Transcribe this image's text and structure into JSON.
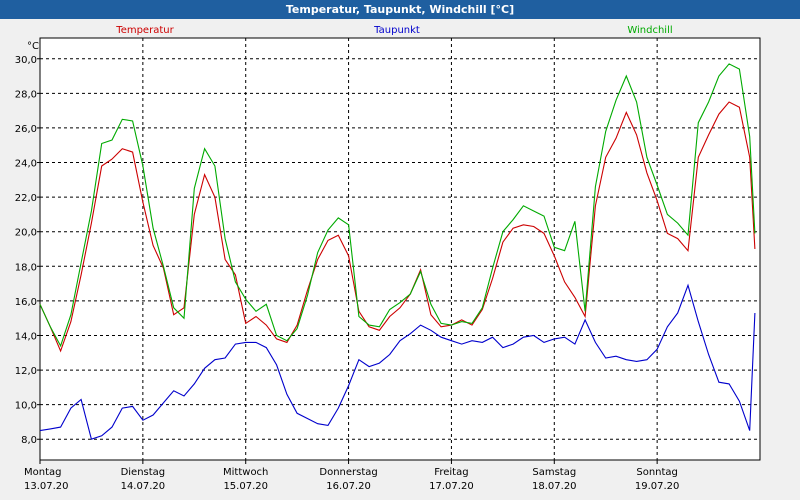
{
  "window": {
    "title": "Temperatur, Taupunkt, Windchill [°C]"
  },
  "chart_data": {
    "type": "line",
    "title": "Temperatur, Taupunkt, Windchill [°C]",
    "ylabel": "°C",
    "ylim": [
      6.8,
      31.2
    ],
    "xlim": [
      0,
      7
    ],
    "grid": true,
    "legend_position": "top",
    "yticks": [
      "8,0",
      "10,0",
      "12,0",
      "14,0",
      "16,0",
      "18,0",
      "20,0",
      "22,0",
      "24,0",
      "26,0",
      "28,0",
      "30,0"
    ],
    "xticks": [
      {
        "day": "Montag",
        "date": "13.07.20"
      },
      {
        "day": "Dienstag",
        "date": "14.07.20"
      },
      {
        "day": "Mittwoch",
        "date": "15.07.20"
      },
      {
        "day": "Donnerstag",
        "date": "16.07.20"
      },
      {
        "day": "Freitag",
        "date": "17.07.20"
      },
      {
        "day": "Samstag",
        "date": "18.07.20"
      },
      {
        "day": "Sonntag",
        "date": "19.07.20"
      }
    ],
    "x": [
      0,
      0.1,
      0.2,
      0.3,
      0.4,
      0.5,
      0.6,
      0.7,
      0.8,
      0.9,
      1,
      1.1,
      1.2,
      1.3,
      1.4,
      1.5,
      1.6,
      1.7,
      1.8,
      1.9,
      2,
      2.1,
      2.2,
      2.3,
      2.4,
      2.5,
      2.6,
      2.7,
      2.8,
      2.9,
      3,
      3.1,
      3.2,
      3.3,
      3.4,
      3.5,
      3.6,
      3.7,
      3.8,
      3.9,
      4,
      4.1,
      4.2,
      4.3,
      4.4,
      4.5,
      4.6,
      4.7,
      4.8,
      4.9,
      5,
      5.1,
      5.2,
      5.3,
      5.4,
      5.5,
      5.6,
      5.7,
      5.8,
      5.9,
      6,
      6.1,
      6.2,
      6.3,
      6.4,
      6.5,
      6.6,
      6.7,
      6.8,
      6.9,
      6.95
    ],
    "series": [
      {
        "name": "Temperatur",
        "color": "#cc0000",
        "values": [
          15.8,
          14.5,
          13.1,
          14.8,
          17.5,
          20.5,
          23.8,
          24.2,
          24.8,
          24.6,
          21.7,
          19.2,
          17.9,
          15.2,
          15.6,
          21.0,
          23.3,
          22.0,
          18.4,
          17.5,
          14.7,
          15.1,
          14.6,
          13.8,
          13.6,
          14.6,
          16.6,
          18.4,
          19.5,
          19.8,
          18.6,
          15.4,
          14.5,
          14.3,
          15.1,
          15.6,
          16.4,
          17.8,
          15.2,
          14.5,
          14.6,
          14.9,
          14.6,
          15.5,
          17.3,
          19.4,
          20.2,
          20.4,
          20.3,
          19.9,
          18.6,
          17.1,
          16.2,
          15.1,
          21.5,
          24.3,
          25.4,
          26.9,
          25.6,
          23.4,
          21.8,
          19.9,
          19.6,
          18.9,
          24.3,
          25.6,
          26.8,
          27.5,
          27.2,
          24.3,
          19.0
        ]
      },
      {
        "name": "Taupunkt",
        "color": "#0000cc",
        "values": [
          8.5,
          8.6,
          8.7,
          9.8,
          10.3,
          8.0,
          8.2,
          8.7,
          9.8,
          9.9,
          9.1,
          9.4,
          10.1,
          10.8,
          10.5,
          11.2,
          12.1,
          12.6,
          12.7,
          13.5,
          13.6,
          13.6,
          13.3,
          12.3,
          10.6,
          9.5,
          9.2,
          8.9,
          8.8,
          9.8,
          11.1,
          12.6,
          12.2,
          12.4,
          12.9,
          13.7,
          14.1,
          14.6,
          14.3,
          13.9,
          13.7,
          13.5,
          13.7,
          13.6,
          13.9,
          13.3,
          13.5,
          13.9,
          14.0,
          13.6,
          13.8,
          13.9,
          13.5,
          14.9,
          13.6,
          12.7,
          12.8,
          12.6,
          12.5,
          12.6,
          13.2,
          14.5,
          15.3,
          16.9,
          14.8,
          12.9,
          11.3,
          11.2,
          10.2,
          8.5,
          15.3
        ]
      },
      {
        "name": "Windchill",
        "color": "#00aa00",
        "values": [
          15.8,
          14.5,
          13.4,
          15.2,
          18.2,
          21.2,
          25.1,
          25.3,
          26.5,
          26.4,
          23.8,
          20.2,
          18.0,
          15.6,
          15.0,
          22.5,
          24.8,
          23.8,
          19.6,
          17.1,
          16.1,
          15.4,
          15.8,
          14.0,
          13.7,
          14.4,
          16.3,
          18.8,
          20.1,
          20.8,
          20.4,
          15.1,
          14.6,
          14.5,
          15.5,
          15.9,
          16.4,
          17.7,
          15.8,
          14.7,
          14.6,
          14.8,
          14.7,
          15.6,
          17.9,
          20.0,
          20.7,
          21.5,
          21.2,
          20.9,
          19.1,
          18.9,
          20.6,
          15.4,
          22.6,
          25.8,
          27.6,
          29.0,
          27.5,
          24.3,
          22.7,
          21.0,
          20.5,
          19.8,
          26.3,
          27.5,
          29.0,
          29.7,
          29.4,
          25.5,
          19.9
        ]
      }
    ]
  }
}
